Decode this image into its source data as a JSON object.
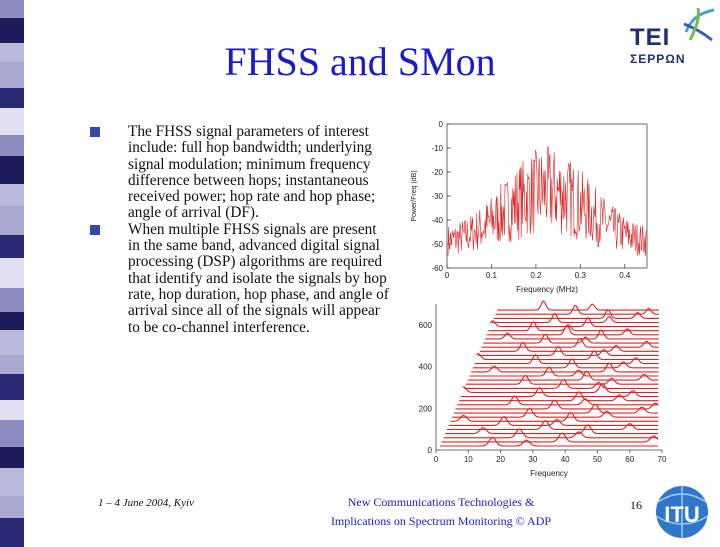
{
  "slide": {
    "title": "FHSS and SMon",
    "logo": {
      "line1": "TEI",
      "line2": "ΣΕΡΡΩΝ"
    },
    "bullets": [
      "The FHSS signal parameters of interest include: full hop bandwidth; underlying signal modulation; minimum frequency difference between hops; instantaneous received power; hop rate and hop phase; angle of arrival (DF).",
      "When multiple FHSS signals are present in the same band, advanced digital signal processing (DSP) algorithms are required that identify and isolate the signals by hop rate, hop duration, hop phase, and angle of arrival since all of the signals will appear to be co-channel interference."
    ],
    "footer_left": "1 – 4 June 2004, Kyiv",
    "footer_center_line1": "New Communications Technologies &",
    "footer_center_line2": "Implications on Spectrum Monitoring © ADP",
    "page_number": "16",
    "itu_logo_text": "ITU"
  },
  "colors": {
    "title": "#1a1ad0",
    "bullet_marker": "#3848a8",
    "trace": "#e02020",
    "strip_palette": [
      "#b8b8d8",
      "#1c1c5a",
      "#8c8cc0",
      "#e0e0f0",
      "#2a2a74",
      "#a8a8d0"
    ]
  },
  "figure_spectrum": {
    "ylabel": "Power/Freq (dB)",
    "xlabel": "Frequency (MHz)",
    "y_ticks": [
      "0",
      "-10",
      "-20",
      "-30",
      "-40",
      "-50",
      "-60"
    ],
    "x_ticks": [
      "0",
      "0.1",
      "0.2",
      "0.3",
      "0.4"
    ],
    "y_range": [
      -60,
      0
    ],
    "x_range": [
      0,
      0.45
    ]
  },
  "figure_waterfall": {
    "xlabel": "Frequency",
    "y_ticks": [
      "600",
      "400",
      "200",
      "0"
    ],
    "x_ticks": [
      "0",
      "10",
      "20",
      "30",
      "40",
      "50",
      "60",
      "70"
    ],
    "x_range": [
      0,
      70
    ],
    "y_range": [
      0,
      700
    ]
  }
}
